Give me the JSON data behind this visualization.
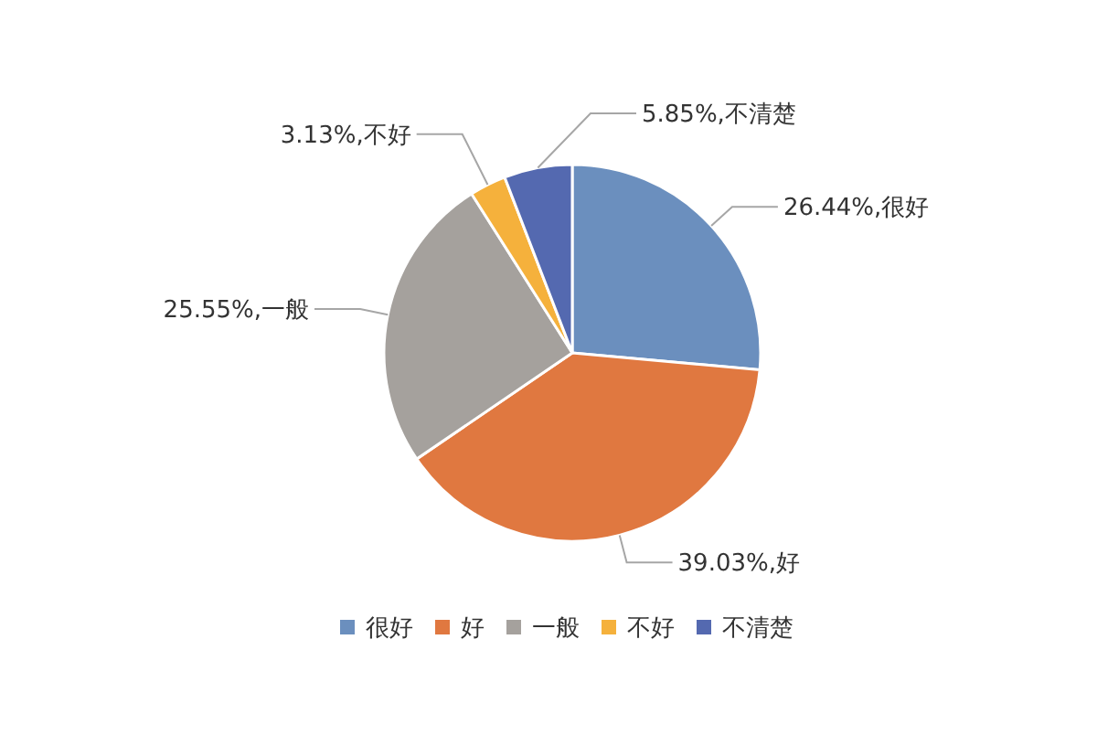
{
  "chart_data": {
    "type": "pie",
    "categories": [
      "很好",
      "好",
      "一般",
      "不好",
      "不清楚"
    ],
    "values": [
      26.44,
      39.03,
      25.55,
      3.13,
      5.85
    ],
    "colors": [
      "#6b8fbe",
      "#e07840",
      "#a5a19d",
      "#f5b13c",
      "#5469b0"
    ],
    "value_labels": [
      "26.44%,很好",
      "39.03%,好",
      "25.55%,一般",
      "3.13%,不好",
      "5.85%,不清楚"
    ],
    "legend": "bottom"
  }
}
